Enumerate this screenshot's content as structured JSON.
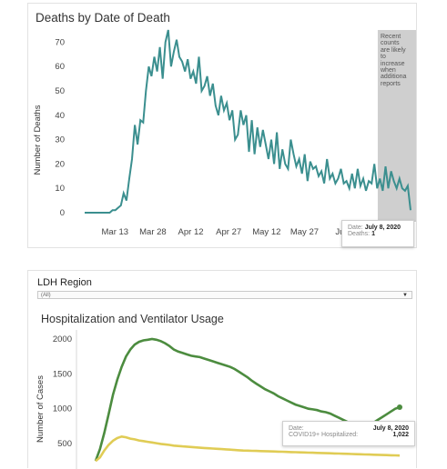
{
  "deaths_panel": {
    "title": "Deaths by Date of Death",
    "note": [
      "Recent",
      "counts",
      "are likely",
      "to",
      "increase",
      "when",
      "additiona",
      "reports"
    ],
    "tooltip": {
      "date_label": "Date:",
      "date_value": "July 8, 2020",
      "value_label": "Deaths:",
      "value": "1"
    }
  },
  "hosp_panel": {
    "region_label": "LDH Region",
    "region_selected": "(All)",
    "title": "Hospitalization and Ventilator Usage",
    "tooltip": {
      "date_label": "Date:",
      "date_value": "July 8, 2020",
      "value_label": "COVID19+ Hospitalized:",
      "value": "1,022"
    }
  },
  "chart_data": [
    {
      "type": "line",
      "title": "Deaths by Date of Death",
      "xlabel": "",
      "ylabel": "Number of Deaths",
      "ylim": [
        0,
        75
      ],
      "yticks": [
        0,
        10,
        20,
        30,
        40,
        50,
        60,
        70
      ],
      "xticks": [
        "Mar 13",
        "Mar 28",
        "Apr 12",
        "Apr 27",
        "May 12",
        "May 27",
        "Jun"
      ],
      "x_start": "2020-03-01",
      "x_end": "2020-07-08",
      "colors": {
        "line": "#3b8f8f",
        "shade": "#cfcfcf"
      },
      "shaded_range": [
        "2020-06-25",
        "2020-07-08"
      ],
      "values": [
        0,
        0,
        0,
        0,
        0,
        0,
        0,
        0,
        0,
        0,
        1,
        1,
        2,
        3,
        8,
        5,
        14,
        22,
        36,
        28,
        38,
        37,
        50,
        60,
        56,
        64,
        58,
        68,
        55,
        70,
        75,
        60,
        66,
        71,
        64,
        62,
        58,
        63,
        55,
        58,
        53,
        64,
        50,
        52,
        56,
        48,
        53,
        44,
        40,
        48,
        42,
        45,
        38,
        42,
        30,
        32,
        42,
        36,
        40,
        25,
        38,
        24,
        35,
        27,
        34,
        28,
        22,
        30,
        20,
        33,
        18,
        26,
        20,
        18,
        30,
        24,
        19,
        22,
        16,
        24,
        13,
        21,
        18,
        19,
        15,
        17,
        12,
        22,
        14,
        16,
        12,
        14,
        18,
        12,
        13,
        10,
        16,
        10,
        18,
        11,
        14,
        9,
        13,
        12,
        20,
        10,
        14,
        9,
        19,
        10,
        17,
        13,
        10,
        14,
        10,
        9,
        11,
        1
      ]
    },
    {
      "type": "line",
      "title": "Hospitalization and Ventilator Usage",
      "xlabel": "",
      "ylabel": "Number of Cases",
      "ylim": [
        250,
        2050
      ],
      "yticks": [
        500,
        1000,
        1500,
        2000
      ],
      "series": [
        {
          "name": "COVID19+ Hospitalized",
          "color": "#4c8c3f",
          "values": [
            250,
            420,
            650,
            920,
            1200,
            1420,
            1600,
            1750,
            1850,
            1920,
            1960,
            1980,
            1990,
            2000,
            1990,
            1970,
            1940,
            1900,
            1850,
            1820,
            1800,
            1780,
            1760,
            1750,
            1740,
            1720,
            1700,
            1680,
            1660,
            1640,
            1620,
            1600,
            1570,
            1530,
            1490,
            1450,
            1400,
            1360,
            1320,
            1280,
            1250,
            1220,
            1180,
            1150,
            1120,
            1090,
            1060,
            1040,
            1020,
            1000,
            990,
            980,
            960,
            950,
            930,
            900,
            870,
            840,
            810,
            790,
            770,
            760,
            760,
            780,
            800,
            840,
            880,
            920,
            960,
            1000,
            1022
          ]
        },
        {
          "name": "",
          "color": "#e0cc55",
          "values": [
            250,
            300,
            400,
            480,
            540,
            580,
            600,
            590,
            570,
            560,
            545,
            535,
            525,
            515,
            505,
            495,
            488,
            480,
            470,
            465,
            460,
            455,
            450,
            445,
            440,
            436,
            432,
            428,
            424,
            420,
            416,
            412,
            408,
            404,
            400,
            398,
            396,
            394,
            392,
            390,
            388,
            386,
            384,
            382,
            380,
            378,
            376,
            374,
            372,
            370,
            368,
            366,
            364,
            362,
            360,
            358,
            356,
            354,
            352,
            350,
            348,
            346,
            344,
            342,
            340,
            338,
            336,
            334,
            332,
            330,
            328
          ]
        }
      ]
    }
  ]
}
